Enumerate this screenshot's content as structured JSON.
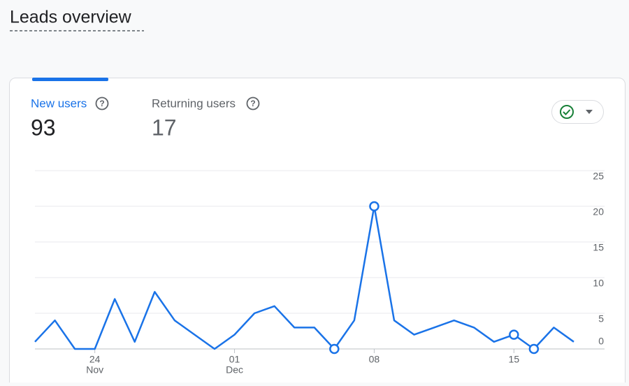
{
  "header": {
    "title": "Leads overview"
  },
  "metrics": [
    {
      "label": "New users",
      "value": 93
    },
    {
      "label": "Returning users",
      "value": 17
    }
  ],
  "chart_data": {
    "type": "line",
    "categories": [
      null,
      null,
      null,
      "24",
      null,
      null,
      null,
      null,
      null,
      null,
      "01",
      null,
      null,
      null,
      null,
      null,
      null,
      "08",
      null,
      null,
      null,
      null,
      null,
      null,
      "15",
      null,
      null,
      null
    ],
    "x_sublabels": [
      null,
      null,
      null,
      "Nov",
      null,
      null,
      null,
      null,
      null,
      null,
      "Dec",
      null,
      null,
      null,
      null,
      null,
      null,
      null,
      null,
      null,
      null,
      null,
      null,
      null,
      null,
      null,
      null,
      null
    ],
    "series": [
      {
        "color": "#1a73e8",
        "values": [
          1,
          4,
          0,
          0,
          7,
          1,
          8,
          4,
          2,
          0,
          2,
          5,
          6,
          3,
          3,
          0,
          4,
          20,
          4,
          2,
          3,
          4,
          3,
          1,
          2,
          0,
          3,
          1
        ]
      }
    ],
    "markers": [
      15,
      17,
      24,
      25
    ],
    "ylim": [
      0,
      25
    ],
    "yticks": [
      0,
      5,
      10,
      15,
      20,
      25
    ],
    "grid": true
  }
}
